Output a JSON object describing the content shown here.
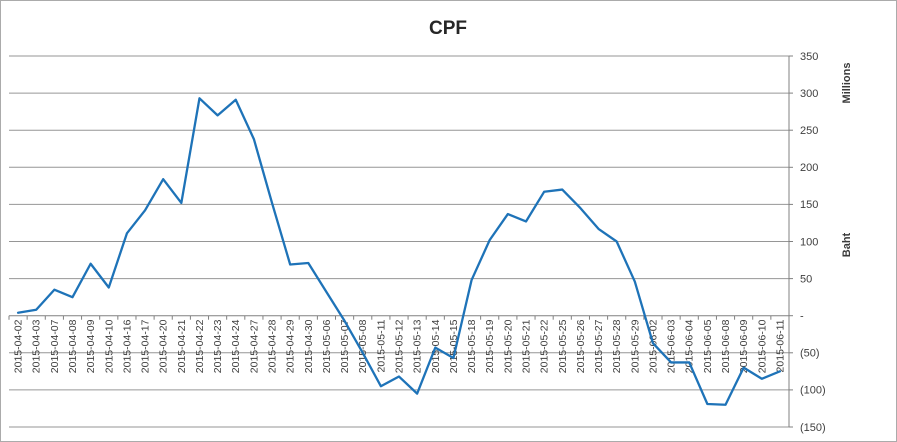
{
  "window": {
    "background_color": "#ffffff",
    "border_color": "#ababab"
  },
  "chart_data": {
    "type": "line",
    "title": "CPF",
    "legend": "none",
    "grid": true,
    "series_color": "#1e73b8",
    "gridline_color": "#969696",
    "axis_color": "#808080",
    "label_color": "#404040",
    "categories": [
      "2015-04-02",
      "2015-04-03",
      "2015-04-07",
      "2015-04-08",
      "2015-04-09",
      "2015-04-10",
      "2015-04-16",
      "2015-04-17",
      "2015-04-20",
      "2015-04-21",
      "2015-04-22",
      "2015-04-23",
      "2015-04-24",
      "2015-04-27",
      "2015-04-28",
      "2015-04-29",
      "2015-04-30",
      "2015-05-06",
      "2015-05-07",
      "2015-05-08",
      "2015-05-11",
      "2015-05-12",
      "2015-05-13",
      "2015-05-14",
      "2015-05-15",
      "2015-05-18",
      "2015-05-19",
      "2015-05-20",
      "2015-05-21",
      "2015-05-22",
      "2015-05-25",
      "2015-05-26",
      "2015-05-27",
      "2015-05-28",
      "2015-05-29",
      "2015-06-02",
      "2015-06-03",
      "2015-06-04",
      "2015-06-05",
      "2015-06-08",
      "2015-06-09",
      "2015-06-10",
      "2015-06-11"
    ],
    "values": [
      4,
      8,
      35,
      25,
      70,
      38,
      111,
      142,
      184,
      152,
      293,
      270,
      291,
      238,
      152,
      69,
      71,
      32,
      -7,
      -50,
      -95,
      -82,
      -105,
      -43,
      -57,
      48,
      102,
      137,
      127,
      167,
      170,
      145,
      117,
      100,
      46,
      -37,
      -63,
      -63,
      -119,
      -120,
      -70,
      -85,
      -75
    ],
    "xlabel": "",
    "ylabel": "Baht",
    "y_axis": {
      "side": "right",
      "min": -150,
      "max": 350,
      "interval": 50,
      "tick_values": [
        350,
        300,
        250,
        200,
        150,
        100,
        50,
        0,
        -50,
        -100,
        -150
      ],
      "tick_labels": [
        "350",
        "300",
        "250",
        "200",
        "150",
        "100",
        "50",
        "-",
        "(50)",
        "(100)",
        "(150)"
      ],
      "unit_label": "Millions",
      "title": "Baht"
    }
  }
}
